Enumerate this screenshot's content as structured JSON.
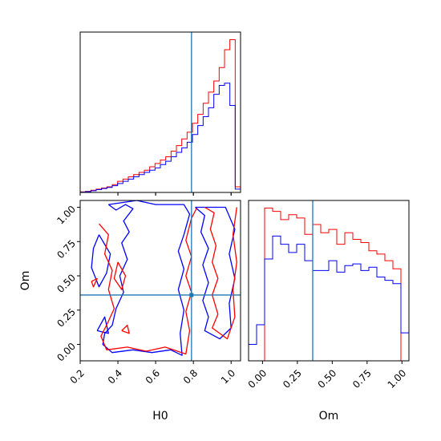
{
  "colors": {
    "red": "#ff0000",
    "blue": "#0000ff",
    "truth": "#1f77b4",
    "frame": "#000000"
  },
  "chart_data": {
    "type": "corner",
    "parameters": [
      "H0",
      "Om"
    ],
    "truths": {
      "H0": 0.79,
      "Om": 0.36
    },
    "series_colors": [
      "red",
      "blue"
    ],
    "hist_H0": {
      "type": "histogram",
      "xlim": [
        0.2,
        1.05
      ],
      "bin_edges": [
        0.2,
        0.2283,
        0.2567,
        0.285,
        0.3133,
        0.3417,
        0.37,
        0.3983,
        0.4267,
        0.455,
        0.4833,
        0.5117,
        0.54,
        0.5683,
        0.5967,
        0.625,
        0.6533,
        0.6817,
        0.71,
        0.7383,
        0.7667,
        0.795,
        0.8233,
        0.8517,
        0.88,
        0.9083,
        0.9367,
        0.965,
        0.9933,
        1.0217,
        1.05
      ],
      "series": [
        {
          "color": "red",
          "values": [
            0.5,
            1,
            2,
            3,
            4,
            5,
            7,
            10,
            12,
            14,
            16,
            18,
            20,
            23,
            26,
            29,
            32,
            37,
            42,
            48,
            54,
            62,
            70,
            80,
            90,
            100,
            112,
            128,
            137,
            5
          ]
        },
        {
          "color": "blue",
          "values": [
            0.3,
            0.7,
            1.5,
            2.5,
            3.5,
            4.5,
            6,
            8,
            10,
            12,
            14,
            16,
            18,
            20,
            22,
            25,
            28,
            32,
            36,
            40,
            45,
            52,
            60,
            68,
            76,
            88,
            96,
            98,
            78,
            3
          ]
        }
      ],
      "xtick_labels": [
        "0.2",
        "0.4",
        "0.6",
        "0.8",
        "1.0"
      ],
      "xticks": [
        0.2,
        0.4,
        0.6,
        0.8,
        1.0
      ]
    },
    "hist_Om": {
      "type": "histogram",
      "xlim": [
        -0.1,
        1.05
      ],
      "bin_edges": [
        -0.1,
        -0.0425,
        0.015,
        0.0725,
        0.13,
        0.1875,
        0.245,
        0.3025,
        0.36,
        0.4175,
        0.475,
        0.5325,
        0.59,
        0.6475,
        0.705,
        0.7625,
        0.82,
        0.8775,
        0.935,
        0.9925,
        1.05
      ],
      "series": [
        {
          "color": "red",
          "values": [
            0,
            0,
            93,
            91,
            86,
            89,
            87,
            77,
            83,
            78,
            80,
            71,
            78,
            74,
            72,
            67,
            65,
            61,
            56,
            0
          ]
        },
        {
          "color": "blue",
          "values": [
            10,
            22,
            62,
            76,
            71,
            66,
            71,
            61,
            55,
            55,
            61,
            54,
            58,
            59,
            55,
            57,
            51,
            49,
            47,
            17
          ]
        }
      ],
      "xtick_labels": [
        "0.00",
        "0.25",
        "0.50",
        "0.75",
        "1.00"
      ],
      "xticks": [
        0.0,
        0.25,
        0.5,
        0.75,
        1.0
      ],
      "xlabel": "Om"
    },
    "contour_H0_Om": {
      "type": "contour",
      "xlim": [
        0.2,
        1.05
      ],
      "ylim": [
        -0.12,
        1.05
      ],
      "xlabel": "H0",
      "ylabel": "Om",
      "xtick_labels": [
        "0.2",
        "0.4",
        "0.6",
        "0.8",
        "1.0"
      ],
      "xticks": [
        0.2,
        0.4,
        0.6,
        0.8,
        1.0
      ],
      "ytick_labels": [
        "0.00",
        "0.25",
        "0.50",
        "0.75",
        "1.00"
      ],
      "yticks": [
        0.0,
        0.25,
        0.5,
        0.75,
        1.0
      ],
      "series": [
        {
          "color": "blue",
          "contours": [
            [
              [
                0.35,
                1.02
              ],
              [
                0.39,
                0.98
              ],
              [
                0.44,
                1.02
              ],
              [
                0.48,
                0.99
              ],
              [
                0.43,
                0.9
              ],
              [
                0.46,
                0.82
              ],
              [
                0.42,
                0.74
              ],
              [
                0.45,
                0.62
              ],
              [
                0.41,
                0.5
              ],
              [
                0.43,
                0.38
              ],
              [
                0.39,
                0.26
              ],
              [
                0.37,
                0.14
              ],
              [
                0.33,
                0.08
              ],
              [
                0.32,
                0.0
              ],
              [
                0.37,
                -0.06
              ],
              [
                0.48,
                -0.04
              ],
              [
                0.58,
                -0.06
              ],
              [
                0.68,
                -0.04
              ],
              [
                0.74,
                -0.08
              ],
              [
                0.73,
                0.08
              ],
              [
                0.75,
                0.25
              ],
              [
                0.72,
                0.4
              ],
              [
                0.75,
                0.55
              ],
              [
                0.72,
                0.68
              ],
              [
                0.75,
                0.8
              ],
              [
                0.78,
                0.95
              ],
              [
                0.75,
                1.02
              ],
              [
                0.6,
                1.02
              ],
              [
                0.5,
                1.05
              ],
              [
                0.35,
                1.02
              ]
            ],
            [
              [
                0.81,
                1.0
              ],
              [
                0.86,
                0.94
              ],
              [
                0.84,
                0.82
              ],
              [
                0.88,
                0.7
              ],
              [
                0.85,
                0.58
              ],
              [
                0.88,
                0.45
              ],
              [
                0.85,
                0.32
              ],
              [
                0.88,
                0.2
              ],
              [
                0.86,
                0.1
              ],
              [
                0.94,
                0.04
              ],
              [
                1.0,
                0.12
              ],
              [
                0.99,
                0.3
              ],
              [
                1.02,
                0.48
              ],
              [
                0.99,
                0.66
              ],
              [
                1.02,
                0.84
              ],
              [
                0.97,
                1.0
              ],
              [
                0.81,
                1.0
              ]
            ],
            [
              [
                0.3,
                0.8
              ],
              [
                0.36,
                0.66
              ],
              [
                0.34,
                0.52
              ],
              [
                0.3,
                0.42
              ],
              [
                0.26,
                0.56
              ],
              [
                0.27,
                0.7
              ],
              [
                0.3,
                0.8
              ]
            ],
            [
              [
                0.29,
                0.1
              ],
              [
                0.33,
                0.2
              ],
              [
                0.35,
                0.08
              ],
              [
                0.29,
                0.1
              ]
            ]
          ]
        },
        {
          "color": "red",
          "contours": [
            [
              [
                0.3,
                0.88
              ],
              [
                0.35,
                0.8
              ],
              [
                0.33,
                0.66
              ],
              [
                0.37,
                0.54
              ],
              [
                0.35,
                0.4
              ],
              [
                0.38,
                0.26
              ],
              [
                0.34,
                0.14
              ],
              [
                0.31,
                0.06
              ],
              [
                0.34,
                -0.04
              ],
              [
                0.45,
                -0.02
              ],
              [
                0.55,
                -0.05
              ],
              [
                0.65,
                -0.02
              ],
              [
                0.76,
                -0.07
              ],
              [
                0.78,
                0.1
              ],
              [
                0.76,
                0.24
              ],
              [
                0.79,
                0.38
              ],
              [
                0.76,
                0.5
              ],
              [
                0.79,
                0.64
              ],
              [
                0.76,
                0.76
              ],
              [
                0.79,
                0.92
              ],
              [
                0.82,
                1.0
              ]
            ],
            [
              [
                0.86,
                1.0
              ],
              [
                0.91,
                0.96
              ],
              [
                0.89,
                0.84
              ],
              [
                0.92,
                0.72
              ],
              [
                0.9,
                0.6
              ],
              [
                0.93,
                0.48
              ],
              [
                0.9,
                0.36
              ],
              [
                0.93,
                0.22
              ],
              [
                0.9,
                0.12
              ],
              [
                0.98,
                0.04
              ],
              [
                1.02,
                0.2
              ],
              [
                1.01,
                0.4
              ],
              [
                1.03,
                0.6
              ],
              [
                1.01,
                0.8
              ],
              [
                1.03,
                1.0
              ]
            ],
            [
              [
                0.4,
                0.6
              ],
              [
                0.44,
                0.5
              ],
              [
                0.42,
                0.4
              ],
              [
                0.38,
                0.48
              ],
              [
                0.4,
                0.6
              ]
            ],
            [
              [
                0.26,
                0.46
              ],
              [
                0.29,
                0.48
              ],
              [
                0.27,
                0.42
              ],
              [
                0.26,
                0.46
              ]
            ],
            [
              [
                0.42,
                0.1
              ],
              [
                0.45,
                0.14
              ],
              [
                0.46,
                0.08
              ],
              [
                0.42,
                0.1
              ]
            ]
          ]
        }
      ]
    }
  }
}
